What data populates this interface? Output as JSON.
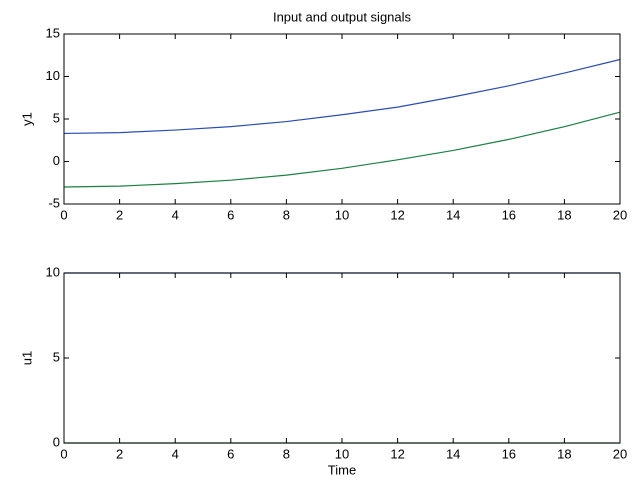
{
  "chart_data": [
    {
      "type": "line",
      "title": "Input and output signals",
      "ylabel": "y1",
      "x": [
        0,
        2,
        4,
        6,
        8,
        10,
        12,
        14,
        16,
        18,
        20
      ],
      "series": [
        {
          "color": "#2a4cb0",
          "values": [
            3.3,
            3.4,
            3.7,
            4.1,
            4.7,
            5.5,
            6.4,
            7.6,
            8.9,
            10.4,
            12.0
          ]
        },
        {
          "color": "#1a8040",
          "values": [
            -3,
            -2.9,
            -2.6,
            -2.2,
            -1.6,
            -0.8,
            0.2,
            1.3,
            2.6,
            4.1,
            5.8
          ]
        }
      ],
      "xlim": [
        0,
        20
      ],
      "xticks": [
        0,
        2,
        4,
        6,
        8,
        10,
        12,
        14,
        16,
        18,
        20
      ],
      "ylim": [
        -5,
        15
      ],
      "yticks": [
        -5,
        0,
        5,
        10,
        15
      ]
    },
    {
      "type": "line",
      "ylabel": "u1",
      "xlabel": "Time",
      "x": [
        0,
        20
      ],
      "series": [
        {
          "color": "#2a4cb0",
          "values": [
            10,
            10
          ]
        },
        {
          "color": "#1a8040",
          "values": [
            0,
            0
          ]
        }
      ],
      "xlim": [
        0,
        20
      ],
      "xticks": [
        0,
        2,
        4,
        6,
        8,
        10,
        12,
        14,
        16,
        18,
        20
      ],
      "ylim": [
        0,
        10
      ],
      "yticks": [
        0,
        5,
        10
      ]
    }
  ]
}
